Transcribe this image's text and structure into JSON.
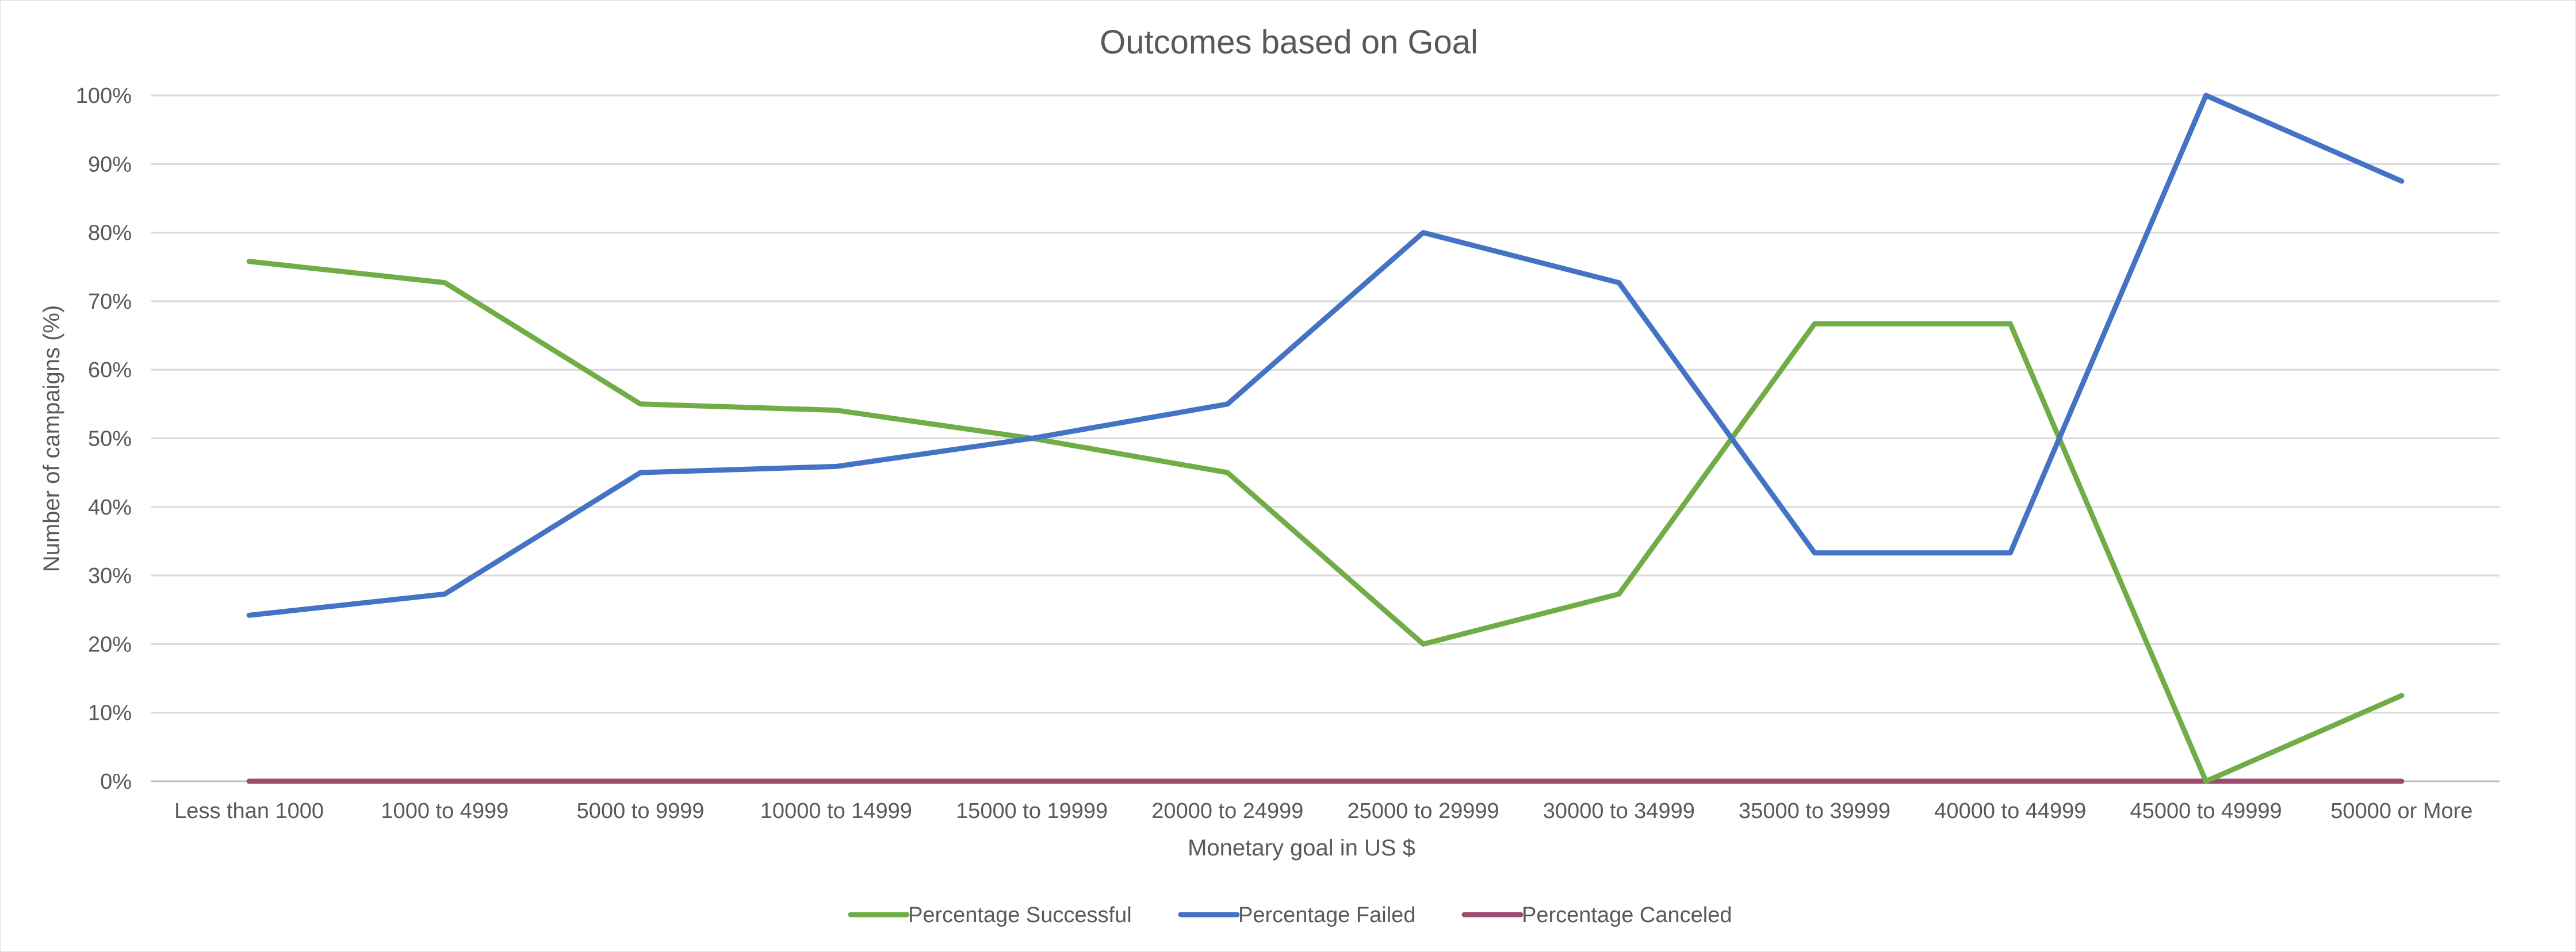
{
  "chart_data": {
    "type": "line",
    "title": "Outcomes based on Goal",
    "xlabel": "Monetary goal in US $",
    "ylabel": "Number of campaigns (%)",
    "ylim": [
      0,
      100
    ],
    "y_ticks": [
      "0%",
      "10%",
      "20%",
      "30%",
      "40%",
      "50%",
      "60%",
      "70%",
      "80%",
      "90%",
      "100%"
    ],
    "grid": true,
    "legend_position": "bottom",
    "categories": [
      "Less than 1000",
      "1000 to 4999",
      "5000 to 9999",
      "10000 to 14999",
      "15000 to 19999",
      "20000 to 24999",
      "25000 to 29999",
      "30000 to 34999",
      "35000 to 39999",
      "40000 to 44999",
      "45000 to 49999",
      "50000 or More"
    ],
    "series": [
      {
        "name": "Percentage Successful",
        "color": "#70ad47",
        "values": [
          75.8,
          72.7,
          55.0,
          54.1,
          50.0,
          45.0,
          20.0,
          27.3,
          66.7,
          66.7,
          0.0,
          12.5
        ]
      },
      {
        "name": "Percentage Failed",
        "color": "#4472c4",
        "values": [
          24.2,
          27.3,
          45.0,
          45.9,
          50.0,
          55.0,
          80.0,
          72.7,
          33.3,
          33.3,
          100.0,
          87.5
        ]
      },
      {
        "name": "Percentage Canceled",
        "color": "#9e4a6e",
        "values": [
          0,
          0,
          0,
          0,
          0,
          0,
          0,
          0,
          0,
          0,
          0,
          0
        ]
      }
    ]
  }
}
